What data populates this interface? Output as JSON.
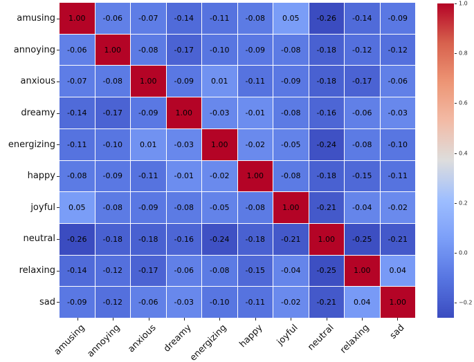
{
  "figure": {
    "type": "correlation-heatmap",
    "background_color": "#ffffff"
  },
  "chart_data": {
    "type": "heatmap",
    "title": "",
    "xlabel": "",
    "ylabel": "",
    "categories": [
      "amusing",
      "annoying",
      "anxious",
      "dreamy",
      "energizing",
      "happy",
      "joyful",
      "neutral",
      "relaxing",
      "sad"
    ],
    "matrix": [
      [
        1.0,
        -0.06,
        -0.07,
        -0.14,
        -0.11,
        -0.08,
        0.05,
        -0.26,
        -0.14,
        -0.09
      ],
      [
        -0.06,
        1.0,
        -0.08,
        -0.17,
        -0.1,
        -0.09,
        -0.08,
        -0.18,
        -0.12,
        -0.12
      ],
      [
        -0.07,
        -0.08,
        1.0,
        -0.09,
        0.01,
        -0.11,
        -0.09,
        -0.18,
        -0.17,
        -0.06
      ],
      [
        -0.14,
        -0.17,
        -0.09,
        1.0,
        -0.03,
        -0.01,
        -0.08,
        -0.16,
        -0.06,
        -0.03
      ],
      [
        -0.11,
        -0.1,
        0.01,
        -0.03,
        1.0,
        -0.02,
        -0.05,
        -0.24,
        -0.08,
        -0.1
      ],
      [
        -0.08,
        -0.09,
        -0.11,
        -0.01,
        -0.02,
        1.0,
        -0.08,
        -0.18,
        -0.15,
        -0.11
      ],
      [
        0.05,
        -0.08,
        -0.09,
        -0.08,
        -0.05,
        -0.08,
        1.0,
        -0.21,
        -0.04,
        -0.02
      ],
      [
        -0.26,
        -0.18,
        -0.18,
        -0.16,
        -0.24,
        -0.18,
        -0.21,
        1.0,
        -0.25,
        -0.21
      ],
      [
        -0.14,
        -0.12,
        -0.17,
        -0.06,
        -0.08,
        -0.15,
        -0.04,
        -0.25,
        1.0,
        0.04
      ],
      [
        -0.09,
        -0.12,
        -0.06,
        -0.03,
        -0.1,
        -0.11,
        -0.02,
        -0.21,
        0.04,
        1.0
      ]
    ],
    "annotation_decimals": 2,
    "vmin": -0.26,
    "vmax": 1.0,
    "colormap": "coolwarm",
    "x_tick_rotation_deg": 45,
    "colors": {
      "colormap_low": "#3b4cc0",
      "colormap_mid": "#dddddd",
      "colormap_high": "#b40426",
      "cell_text": "#000000",
      "grid_lines": "#ffffff",
      "background": "#ffffff",
      "tick_text": "#262626"
    },
    "colorbar": {
      "position": "right",
      "tick_values": [
        1.0,
        0.8,
        0.6,
        0.4,
        0.2,
        0.0,
        -0.2
      ],
      "tick_labels": [
        "1.0",
        "0.8",
        "0.6",
        "0.4",
        "0.2",
        "0.0",
        "−0.2"
      ]
    }
  }
}
